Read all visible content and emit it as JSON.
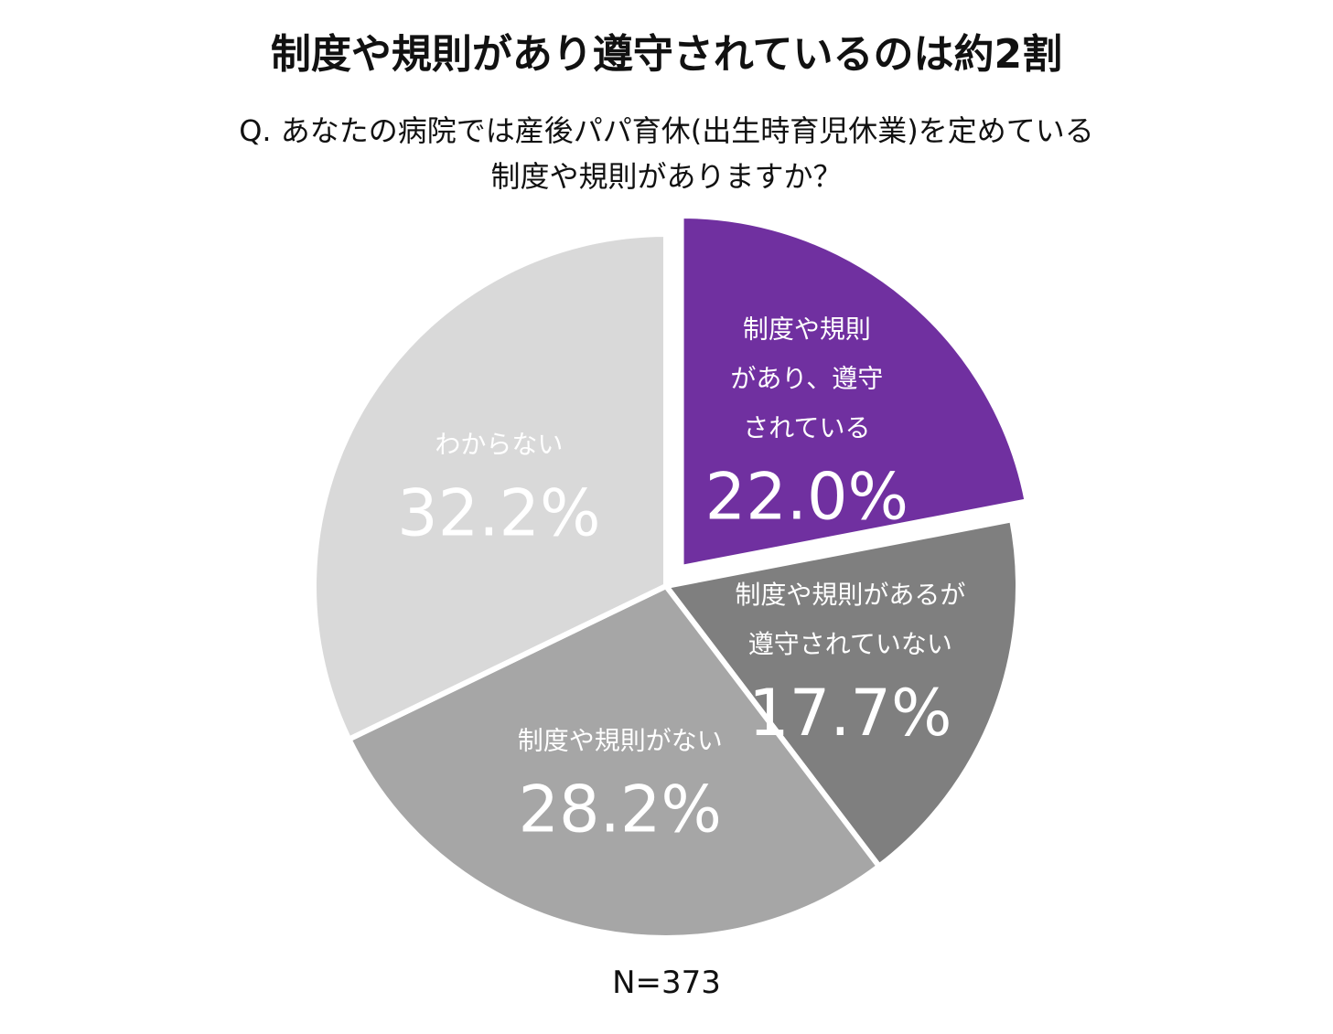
{
  "chart_data": {
    "type": "pie",
    "title": "制度や規則があり遵守されているのは約2割",
    "subtitle_lines": [
      "Q. あなたの病院では産後パパ育休(出生時育児休業)を定めている",
      "制度や規則がありますか？"
    ],
    "footnote": "N=373",
    "unit": "%",
    "highlight_color": "#7030A0",
    "slices": [
      {
        "label_lines": [
          "制度や規則",
          "があり、遵守",
          "されている"
        ],
        "value": 22.0,
        "value_text": "22.0%",
        "color": "#7030A0",
        "text_color": "#FFFFFF",
        "exploded": true
      },
      {
        "label_lines": [
          "制度や規則があるが",
          "遵守されていない"
        ],
        "value": 17.7,
        "value_text": "17.7%",
        "color": "#7F7F7F",
        "text_color": "#FFFFFF",
        "exploded": false
      },
      {
        "label_lines": [
          "制度や規則がない"
        ],
        "value": 28.2,
        "value_text": "28.2%",
        "color": "#A6A6A6",
        "text_color": "#FFFFFF",
        "exploded": false
      },
      {
        "label_lines": [
          "わからない"
        ],
        "value": 32.2,
        "value_text": "32.2%",
        "color": "#D9D9D9",
        "text_color": "#FFFFFF",
        "exploded": false
      }
    ]
  }
}
